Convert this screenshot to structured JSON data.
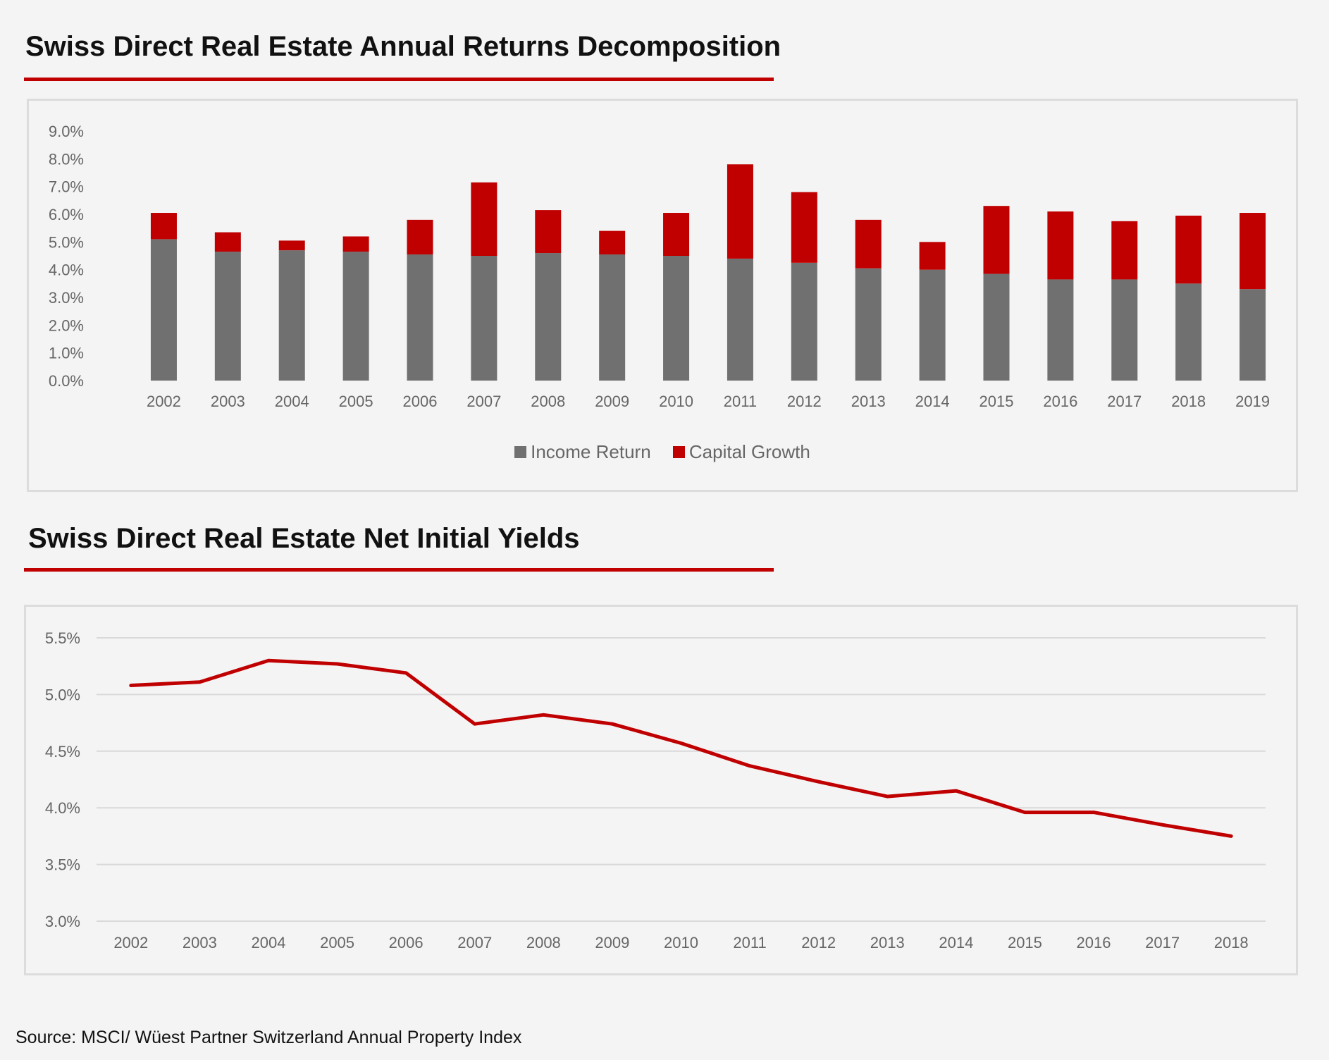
{
  "colors": {
    "accent": "#c00000",
    "income": "#707070",
    "capital": "#c00000",
    "gridline": "#d9d9d9",
    "axis_text": "#666666"
  },
  "chart1": {
    "title": "Swiss Direct Real Estate Annual Returns Decomposition"
  },
  "chart2": {
    "title": "Swiss Direct Real Estate Net Initial Yields"
  },
  "source": "Source: MSCI/ Wüest Partner Switzerland Annual Property Index",
  "chart_data": [
    {
      "type": "bar",
      "stacked": true,
      "title": "Swiss Direct Real Estate Annual Returns Decomposition",
      "categories": [
        "2002",
        "2003",
        "2004",
        "2005",
        "2006",
        "2007",
        "2008",
        "2009",
        "2010",
        "2011",
        "2012",
        "2013",
        "2014",
        "2015",
        "2016",
        "2017",
        "2018",
        "2019"
      ],
      "series": [
        {
          "name": "Income Return",
          "color": "#707070",
          "values": [
            5.1,
            4.65,
            4.7,
            4.65,
            4.55,
            4.5,
            4.6,
            4.55,
            4.5,
            4.4,
            4.25,
            4.05,
            4.0,
            3.85,
            3.65,
            3.65,
            3.5,
            3.3
          ]
        },
        {
          "name": "Capital Growth",
          "color": "#c00000",
          "values": [
            0.95,
            0.7,
            0.35,
            0.55,
            1.25,
            2.65,
            1.55,
            0.85,
            1.55,
            3.4,
            2.55,
            1.75,
            1.0,
            2.45,
            2.45,
            2.1,
            2.45,
            2.75
          ]
        }
      ],
      "ylim": [
        0,
        9
      ],
      "yticks": [
        "0.0%",
        "1.0%",
        "2.0%",
        "3.0%",
        "4.0%",
        "5.0%",
        "6.0%",
        "7.0%",
        "8.0%",
        "9.0%"
      ],
      "grid": false,
      "legend_position": "bottom"
    },
    {
      "type": "line",
      "title": "Swiss Direct Real Estate Net Initial Yields",
      "categories": [
        "2002",
        "2003",
        "2004",
        "2005",
        "2006",
        "2007",
        "2008",
        "2009",
        "2010",
        "2011",
        "2012",
        "2013",
        "2014",
        "2015",
        "2016",
        "2017",
        "2018"
      ],
      "series": [
        {
          "color": "#c00000",
          "values": [
            5.08,
            5.11,
            5.3,
            5.27,
            5.19,
            4.74,
            4.82,
            4.74,
            4.57,
            4.37,
            4.23,
            4.1,
            4.15,
            3.96,
            3.96,
            3.85,
            3.75
          ]
        }
      ],
      "ylim": [
        3.0,
        5.5
      ],
      "yticks": [
        "3.0%",
        "3.5%",
        "4.0%",
        "4.5%",
        "5.0%",
        "5.5%"
      ],
      "grid": true,
      "legend_position": "none"
    }
  ]
}
